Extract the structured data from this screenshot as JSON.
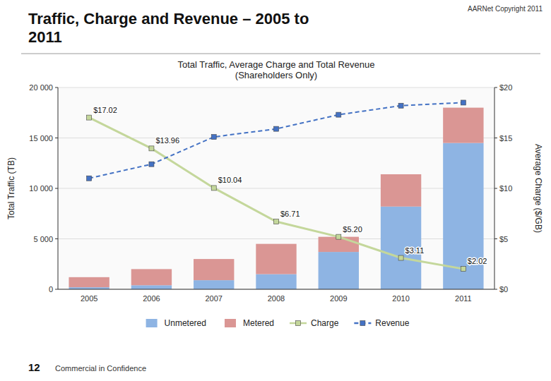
{
  "heading": "Traffic, Charge and Revenue – 2005 to\n2011",
  "copyright": "AARNet Copyright 2011",
  "page_number": "12",
  "footer": "Commercial in Confidence",
  "chart_data": {
    "type": "bar",
    "title": "Total Traffic, Average Charge and Total Revenue\n(Shareholders Only)",
    "categories": [
      "2005",
      "2006",
      "2007",
      "2008",
      "2009",
      "2010",
      "2011"
    ],
    "stacked": true,
    "grid": true,
    "legend": "bottom",
    "ylabel": "Total Traffic (TB)",
    "y2label": "Average Charge ($/GB)",
    "ylim": [
      0,
      20000
    ],
    "yticks": [
      0,
      {
        "value": 5000,
        "label": "5 000"
      },
      {
        "value": 10000,
        "label": "10 000"
      },
      {
        "value": 15000,
        "label": "15 000"
      },
      {
        "value": 20000,
        "label": "20 000"
      }
    ],
    "y2lim": [
      0,
      20
    ],
    "y2ticks": [
      {
        "value": 0,
        "label": "$0"
      },
      {
        "value": 5,
        "label": "$5"
      },
      {
        "value": 10,
        "label": "$10"
      },
      {
        "value": 15,
        "label": "$15"
      },
      {
        "value": 20,
        "label": "$20"
      }
    ],
    "series": [
      {
        "name": "Unmetered",
        "type": "bar",
        "color": "#8EB4E3",
        "values": [
          200,
          400,
          900,
          1500,
          3700,
          8200,
          14500
        ]
      },
      {
        "name": "Metered",
        "type": "bar",
        "color": "#DA9694",
        "values": [
          1000,
          1600,
          2100,
          3000,
          1500,
          3200,
          3500
        ]
      },
      {
        "name": "Charge",
        "type": "line",
        "color": "#C4D79B",
        "marker": "square",
        "line_style": "solid",
        "data_labels": true,
        "values": [
          17020,
          13960,
          10040,
          6710,
          5200,
          3110,
          2020
        ],
        "value_labels": [
          "$17.02",
          "$13.96",
          "$10.04",
          "$6.71",
          "$5.20",
          "$3.11",
          "$2.02"
        ]
      },
      {
        "name": "Revenue",
        "type": "line",
        "color": "#4472C4",
        "marker": "square",
        "line_style": "dashed",
        "values": [
          11000,
          12400,
          15100,
          15900,
          17300,
          18200,
          18500
        ]
      }
    ]
  }
}
